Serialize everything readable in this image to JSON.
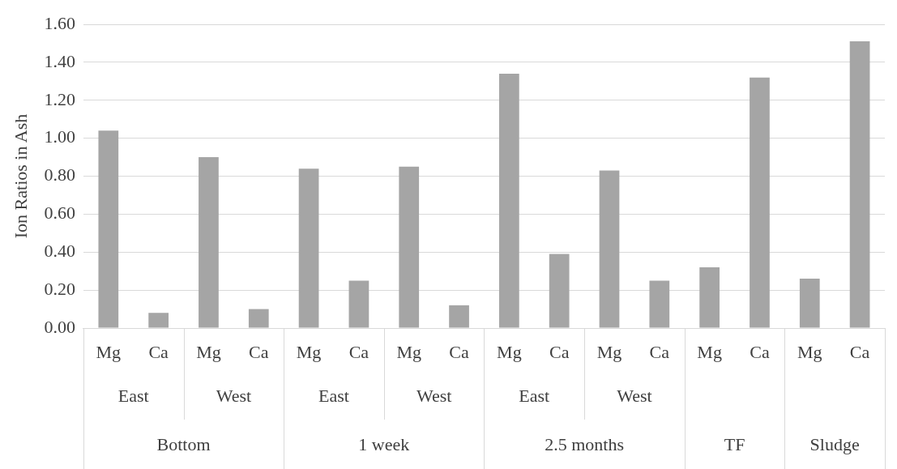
{
  "chart_data": {
    "type": "bar",
    "ylabel": "Ion Ratios in Ash",
    "categories": [
      "Mg",
      "Ca",
      "Mg",
      "Ca",
      "Mg",
      "Ca",
      "Mg",
      "Ca",
      "Mg",
      "Ca",
      "Mg",
      "Ca",
      "Mg",
      "Ca",
      "Mg",
      "Ca"
    ],
    "values": [
      1.04,
      0.08,
      0.9,
      0.1,
      0.84,
      0.25,
      0.85,
      0.12,
      1.34,
      0.39,
      0.83,
      0.25,
      0.32,
      1.32,
      0.26,
      1.51
    ],
    "color": "#a5a5a5",
    "annotations": [
      "East",
      "West",
      "East",
      "West",
      "East",
      "West",
      "Bottom",
      "1 week",
      "2.5 months",
      "TF",
      "Sludge"
    ],
    "ylim": [
      0,
      1.6
    ],
    "yticks": [
      {
        "value": 0,
        "label": "0.00"
      },
      {
        "value": 0.2,
        "label": "0.20"
      },
      {
        "value": 0.4,
        "label": "0.40"
      },
      {
        "value": 0.6,
        "label": "0.60"
      },
      {
        "value": 0.8,
        "label": "0.80"
      },
      {
        "value": 1,
        "label": "1.00"
      },
      {
        "value": 1.2,
        "label": "1.20"
      },
      {
        "value": 1.4,
        "label": "1.40"
      },
      {
        "value": 1.6,
        "label": "1.60"
      }
    ],
    "grid": "y",
    "legend": false
  }
}
